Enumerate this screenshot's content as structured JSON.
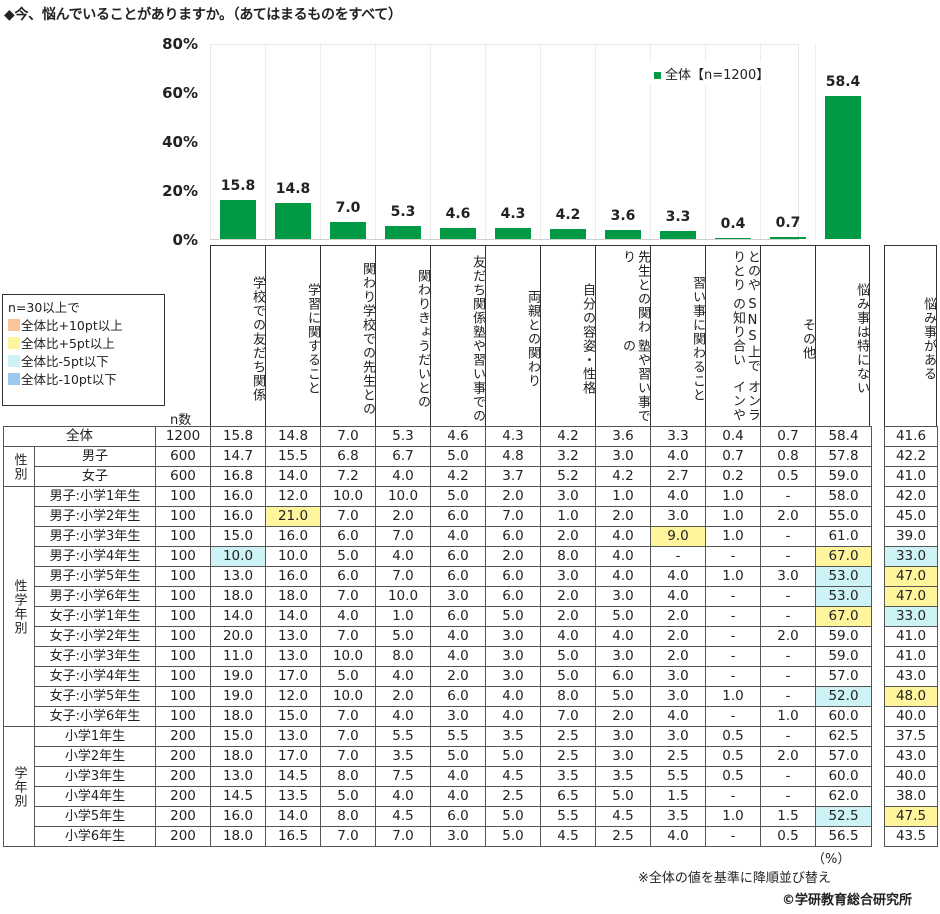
{
  "title": "◆今、悩んでいることがありますか。（あてはまるものをすべて）",
  "chart_data": {
    "type": "bar",
    "title": "今、悩んでいることがありますか。（あてはまるものをすべて）",
    "categories": [
      "学校での友だち関係",
      "学習に関すること",
      "学校での先生との関わり",
      "きょうだいとの関わり",
      "塾や習い事での友だち関係",
      "両親との関わり",
      "自分の容姿・性格",
      "塾や習い事での先生との関わり",
      "習い事に関わること",
      "オンラインやSNS上での知り合いとのやりとり",
      "その他",
      "悩み事は特にない"
    ],
    "series": [
      {
        "name": "全体【n=1200】",
        "values": [
          15.8,
          14.8,
          7.0,
          5.3,
          4.6,
          4.3,
          4.2,
          3.6,
          3.3,
          0.4,
          0.7,
          58.4
        ],
        "color": "#009944"
      }
    ],
    "yticks": [
      "0%",
      "20%",
      "40%",
      "60%",
      "80%"
    ],
    "ylim": [
      0,
      80
    ],
    "xlabel": "",
    "ylabel": "",
    "legend_position": "top-right inside",
    "grid": "vertical"
  },
  "chart": {
    "yticks": [
      "80%",
      "60%",
      "40%",
      "20%",
      "0%"
    ],
    "legend_label": "全体【n=1200】",
    "bar_labels": [
      "15.8",
      "14.8",
      "7.0",
      "5.3",
      "4.6",
      "4.3",
      "4.2",
      "3.6",
      "3.3",
      "0.4",
      "0.7",
      "58.4"
    ]
  },
  "color_legend": {
    "heading": "n=30以上で",
    "items": [
      {
        "label": "全体比+10pt以上",
        "color": "#f9c49a"
      },
      {
        "label": "全体比+5pt以上",
        "color": "#fff59d"
      },
      {
        "label": "全体比-5pt以下",
        "color": "#cdf3f7"
      },
      {
        "label": "全体比-10pt以下",
        "color": "#9cc8f0"
      }
    ]
  },
  "n_header": "n数",
  "columns": [
    "学校での友だち関係",
    "学習に関すること",
    "学校での先生との関わり",
    "きょうだいとの関わり",
    "塾や習い事での友だち関係",
    "両親との関わり",
    "自分の容姿・性格",
    "塾や習い事での先生との関わり",
    "習い事に関わること",
    "オンラインやSNS上での知り合いとのやりとり",
    "その他",
    "悩み事は特にない"
  ],
  "columns_display": [
    "学校での友だち関係",
    "学習に関すること",
    "関わり\n学校での先生との",
    "関わり\nきょうだいとの",
    "友だち関係\n塾や習い事での",
    "両親との関わり",
    "自分の容姿・性格",
    "先生との関わり\n塾や習い事での",
    "習い事に関わること",
    "とのやりとり\nSNS上での知り合い\nオンラインや",
    "その他",
    "悩み事は特にない"
  ],
  "side_column": "悩み事がある",
  "groups": {
    "gender": "性別",
    "gender_grade": "性学年別",
    "grade": "学年別"
  },
  "rows": [
    {
      "label": "全体",
      "n": "1200",
      "values": [
        "15.8",
        "14.8",
        "7.0",
        "5.3",
        "4.6",
        "4.3",
        "4.2",
        "3.6",
        "3.3",
        "0.4",
        "0.7",
        "58.4"
      ],
      "side": "41.6",
      "hl": {}
    },
    {
      "label": "男子",
      "n": "600",
      "values": [
        "14.7",
        "15.5",
        "6.8",
        "6.7",
        "5.0",
        "4.8",
        "3.2",
        "3.0",
        "4.0",
        "0.7",
        "0.8",
        "57.8"
      ],
      "side": "42.2",
      "hl": {}
    },
    {
      "label": "女子",
      "n": "600",
      "values": [
        "16.8",
        "14.0",
        "7.2",
        "4.0",
        "4.2",
        "3.7",
        "5.2",
        "4.2",
        "2.7",
        "0.2",
        "0.5",
        "59.0"
      ],
      "side": "41.0",
      "hl": {}
    },
    {
      "label": "男子:小学1年生",
      "n": "100",
      "values": [
        "16.0",
        "12.0",
        "10.0",
        "10.0",
        "5.0",
        "2.0",
        "3.0",
        "1.0",
        "4.0",
        "1.0",
        "-",
        "58.0"
      ],
      "side": "42.0",
      "hl": {}
    },
    {
      "label": "男子:小学2年生",
      "n": "100",
      "values": [
        "16.0",
        "21.0",
        "7.0",
        "2.0",
        "6.0",
        "7.0",
        "1.0",
        "2.0",
        "3.0",
        "1.0",
        "2.0",
        "55.0"
      ],
      "side": "45.0",
      "hl": {
        "1": "y"
      }
    },
    {
      "label": "男子:小学3年生",
      "n": "100",
      "values": [
        "15.0",
        "16.0",
        "6.0",
        "7.0",
        "4.0",
        "6.0",
        "2.0",
        "4.0",
        "9.0",
        "1.0",
        "-",
        "61.0"
      ],
      "side": "39.0",
      "hl": {
        "8": "y"
      }
    },
    {
      "label": "男子:小学4年生",
      "n": "100",
      "values": [
        "10.0",
        "10.0",
        "5.0",
        "4.0",
        "6.0",
        "2.0",
        "8.0",
        "4.0",
        "-",
        "-",
        "-",
        "67.0"
      ],
      "side": "33.0",
      "hl": {
        "0": "c",
        "11": "y",
        "side": "c"
      }
    },
    {
      "label": "男子:小学5年生",
      "n": "100",
      "values": [
        "13.0",
        "16.0",
        "6.0",
        "7.0",
        "6.0",
        "6.0",
        "3.0",
        "4.0",
        "4.0",
        "1.0",
        "3.0",
        "53.0"
      ],
      "side": "47.0",
      "hl": {
        "11": "c",
        "side": "y"
      }
    },
    {
      "label": "男子:小学6年生",
      "n": "100",
      "values": [
        "18.0",
        "18.0",
        "7.0",
        "10.0",
        "3.0",
        "6.0",
        "2.0",
        "3.0",
        "4.0",
        "-",
        "-",
        "53.0"
      ],
      "side": "47.0",
      "hl": {
        "11": "c",
        "side": "y"
      }
    },
    {
      "label": "女子:小学1年生",
      "n": "100",
      "values": [
        "14.0",
        "14.0",
        "4.0",
        "1.0",
        "6.0",
        "5.0",
        "2.0",
        "5.0",
        "2.0",
        "-",
        "-",
        "67.0"
      ],
      "side": "33.0",
      "hl": {
        "11": "y",
        "side": "c"
      }
    },
    {
      "label": "女子:小学2年生",
      "n": "100",
      "values": [
        "20.0",
        "13.0",
        "7.0",
        "5.0",
        "4.0",
        "3.0",
        "4.0",
        "4.0",
        "2.0",
        "-",
        "2.0",
        "59.0"
      ],
      "side": "41.0",
      "hl": {}
    },
    {
      "label": "女子:小学3年生",
      "n": "100",
      "values": [
        "11.0",
        "13.0",
        "10.0",
        "8.0",
        "4.0",
        "3.0",
        "5.0",
        "3.0",
        "2.0",
        "-",
        "-",
        "59.0"
      ],
      "side": "41.0",
      "hl": {}
    },
    {
      "label": "女子:小学4年生",
      "n": "100",
      "values": [
        "19.0",
        "17.0",
        "5.0",
        "4.0",
        "2.0",
        "3.0",
        "5.0",
        "6.0",
        "3.0",
        "-",
        "-",
        "57.0"
      ],
      "side": "43.0",
      "hl": {}
    },
    {
      "label": "女子:小学5年生",
      "n": "100",
      "values": [
        "19.0",
        "12.0",
        "10.0",
        "2.0",
        "6.0",
        "4.0",
        "8.0",
        "5.0",
        "3.0",
        "1.0",
        "-",
        "52.0"
      ],
      "side": "48.0",
      "hl": {
        "11": "c",
        "side": "y"
      }
    },
    {
      "label": "女子:小学6年生",
      "n": "100",
      "values": [
        "18.0",
        "15.0",
        "7.0",
        "4.0",
        "3.0",
        "4.0",
        "7.0",
        "2.0",
        "4.0",
        "-",
        "1.0",
        "60.0"
      ],
      "side": "40.0",
      "hl": {}
    },
    {
      "label": "小学1年生",
      "n": "200",
      "values": [
        "15.0",
        "13.0",
        "7.0",
        "5.5",
        "5.5",
        "3.5",
        "2.5",
        "3.0",
        "3.0",
        "0.5",
        "-",
        "62.5"
      ],
      "side": "37.5",
      "hl": {}
    },
    {
      "label": "小学2年生",
      "n": "200",
      "values": [
        "18.0",
        "17.0",
        "7.0",
        "3.5",
        "5.0",
        "5.0",
        "2.5",
        "3.0",
        "2.5",
        "0.5",
        "2.0",
        "57.0"
      ],
      "side": "43.0",
      "hl": {}
    },
    {
      "label": "小学3年生",
      "n": "200",
      "values": [
        "13.0",
        "14.5",
        "8.0",
        "7.5",
        "4.0",
        "4.5",
        "3.5",
        "3.5",
        "5.5",
        "0.5",
        "-",
        "60.0"
      ],
      "side": "40.0",
      "hl": {}
    },
    {
      "label": "小学4年生",
      "n": "200",
      "values": [
        "14.5",
        "13.5",
        "5.0",
        "4.0",
        "4.0",
        "2.5",
        "6.5",
        "5.0",
        "1.5",
        "-",
        "-",
        "62.0"
      ],
      "side": "38.0",
      "hl": {}
    },
    {
      "label": "小学5年生",
      "n": "200",
      "values": [
        "16.0",
        "14.0",
        "8.0",
        "4.5",
        "6.0",
        "5.0",
        "5.5",
        "4.5",
        "3.5",
        "1.0",
        "1.5",
        "52.5"
      ],
      "side": "47.5",
      "hl": {
        "11": "c",
        "side": "y"
      }
    },
    {
      "label": "小学6年生",
      "n": "200",
      "values": [
        "18.0",
        "16.5",
        "7.0",
        "7.0",
        "3.0",
        "5.0",
        "4.5",
        "2.5",
        "4.0",
        "-",
        "0.5",
        "56.5"
      ],
      "side": "43.5",
      "hl": {}
    }
  ],
  "footer": {
    "unit": "（%）",
    "note": "※全体の値を基準に降順並び替え",
    "credit": "©学研教育総合研究所"
  }
}
